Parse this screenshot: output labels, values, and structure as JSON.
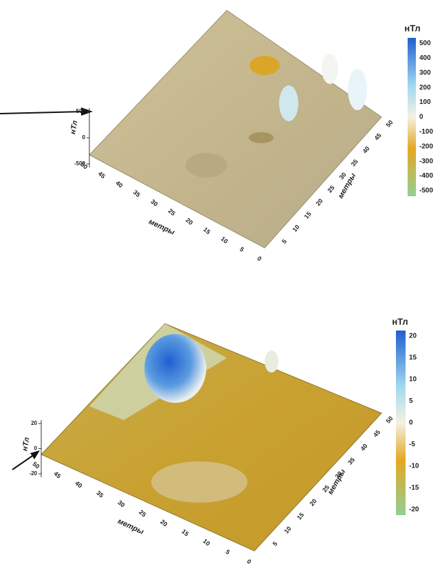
{
  "panels": [
    {
      "colorbar": {
        "title": "нТл",
        "ticks": [
          500,
          400,
          300,
          200,
          100,
          0,
          -100,
          -200,
          -300,
          -400,
          -500
        ]
      },
      "z_axis": {
        "label": "нТл",
        "ticks": [
          500,
          0,
          -500
        ]
      },
      "x_axis": {
        "label": "метры",
        "ticks": [
          50,
          45,
          40,
          35,
          30,
          25,
          20,
          15,
          10,
          5,
          0
        ]
      },
      "y_axis": {
        "label": "метры",
        "ticks": [
          5,
          10,
          15,
          20,
          25,
          30,
          35,
          40,
          45,
          50
        ]
      }
    },
    {
      "colorbar": {
        "title": "нТл",
        "ticks": [
          20,
          15,
          10,
          5,
          0,
          -5,
          -10,
          -15,
          -20
        ]
      },
      "z_axis": {
        "label": "нТл",
        "ticks": [
          20,
          0,
          -20
        ]
      },
      "x_axis": {
        "label": "метры",
        "ticks": [
          50,
          45,
          40,
          35,
          30,
          25,
          20,
          15,
          10,
          5,
          0
        ]
      },
      "y_axis": {
        "label": "метры",
        "ticks": [
          5,
          10,
          15,
          20,
          25,
          30,
          35,
          40,
          45,
          50
        ]
      }
    }
  ]
}
